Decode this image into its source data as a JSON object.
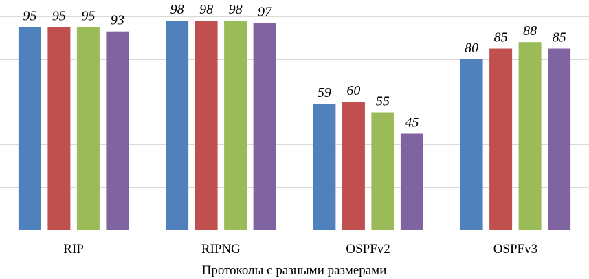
{
  "chart_data": {
    "type": "bar",
    "categories": [
      "RIP",
      "RIPNG",
      "OSPFv2",
      "OSPFv3"
    ],
    "series": [
      {
        "values": [
          95,
          98,
          59,
          80
        ],
        "color": "#4f81bd"
      },
      {
        "values": [
          95,
          98,
          60,
          85
        ],
        "color": "#c0504d"
      },
      {
        "values": [
          95,
          98,
          55,
          88
        ],
        "color": "#9bbb59"
      },
      {
        "values": [
          93,
          97,
          45,
          85
        ],
        "color": "#8064a2"
      }
    ],
    "xlabel": "Протоколы с разными размерами",
    "ylabel": "",
    "ylim": [
      0,
      100
    ],
    "grid": true,
    "data_labels": true
  }
}
